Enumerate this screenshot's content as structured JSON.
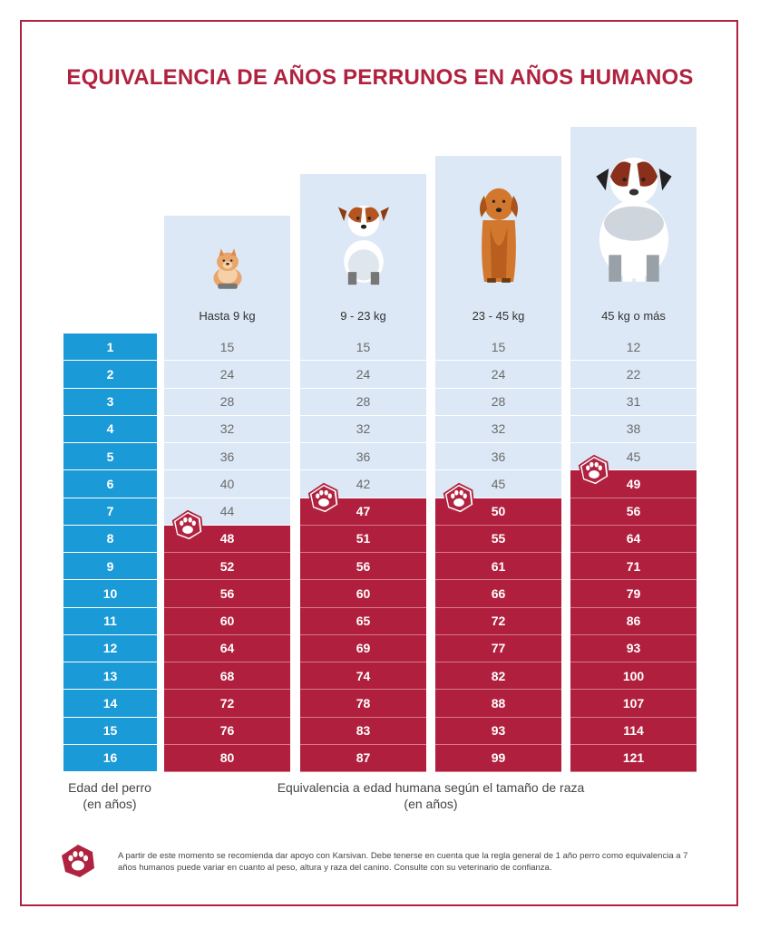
{
  "title": "EQUIVALENCIA DE AÑOS PERRUNOS EN AÑOS HUMANOS",
  "ages": [
    "1",
    "2",
    "3",
    "4",
    "5",
    "6",
    "7",
    "8",
    "9",
    "10",
    "11",
    "12",
    "13",
    "14",
    "15",
    "16"
  ],
  "columns": [
    {
      "size_label": "Hasta 9 kg",
      "breed_icon": "pomeranian-icon",
      "values": [
        "15",
        "24",
        "28",
        "32",
        "36",
        "40",
        "44",
        "48",
        "52",
        "56",
        "60",
        "64",
        "68",
        "72",
        "76",
        "80"
      ],
      "recommend_from_index": 7
    },
    {
      "size_label": "9 - 23 kg",
      "breed_icon": "jack-russell-icon",
      "values": [
        "15",
        "24",
        "28",
        "32",
        "36",
        "42",
        "47",
        "51",
        "56",
        "60",
        "65",
        "69",
        "74",
        "78",
        "83",
        "87"
      ],
      "recommend_from_index": 6
    },
    {
      "size_label": "23 - 45 kg",
      "breed_icon": "golden-retriever-icon",
      "values": [
        "15",
        "24",
        "28",
        "32",
        "36",
        "45",
        "50",
        "55",
        "61",
        "66",
        "72",
        "77",
        "82",
        "88",
        "93",
        "99"
      ],
      "recommend_from_index": 6
    },
    {
      "size_label": "45 kg o más",
      "breed_icon": "saint-bernard-icon",
      "values": [
        "12",
        "22",
        "31",
        "38",
        "45",
        "49",
        "56",
        "64",
        "71",
        "79",
        "86",
        "93",
        "100",
        "107",
        "114",
        "121"
      ],
      "recommend_from_index": 5
    }
  ],
  "footer": {
    "age_label_line1": "Edad del perro",
    "age_label_line2": "(en años)",
    "equiv_label_line1": "Equivalencia a edad humana según el tamaño de raza",
    "equiv_label_line2": "(en años)"
  },
  "note": "A partir de este momento se recomienda dar apoyo con Karsivan. Debe tenerse en cuenta que la regla general de 1 año perro como equivalencia a 7 años humanos puede variar en cuanto al peso, altura y raza del canino. Consulte con su veterinario de confianza.",
  "colors": {
    "accent": "#b0223f",
    "age_blue": "#1a9ad6",
    "light_blue": "#dce8f5"
  }
}
